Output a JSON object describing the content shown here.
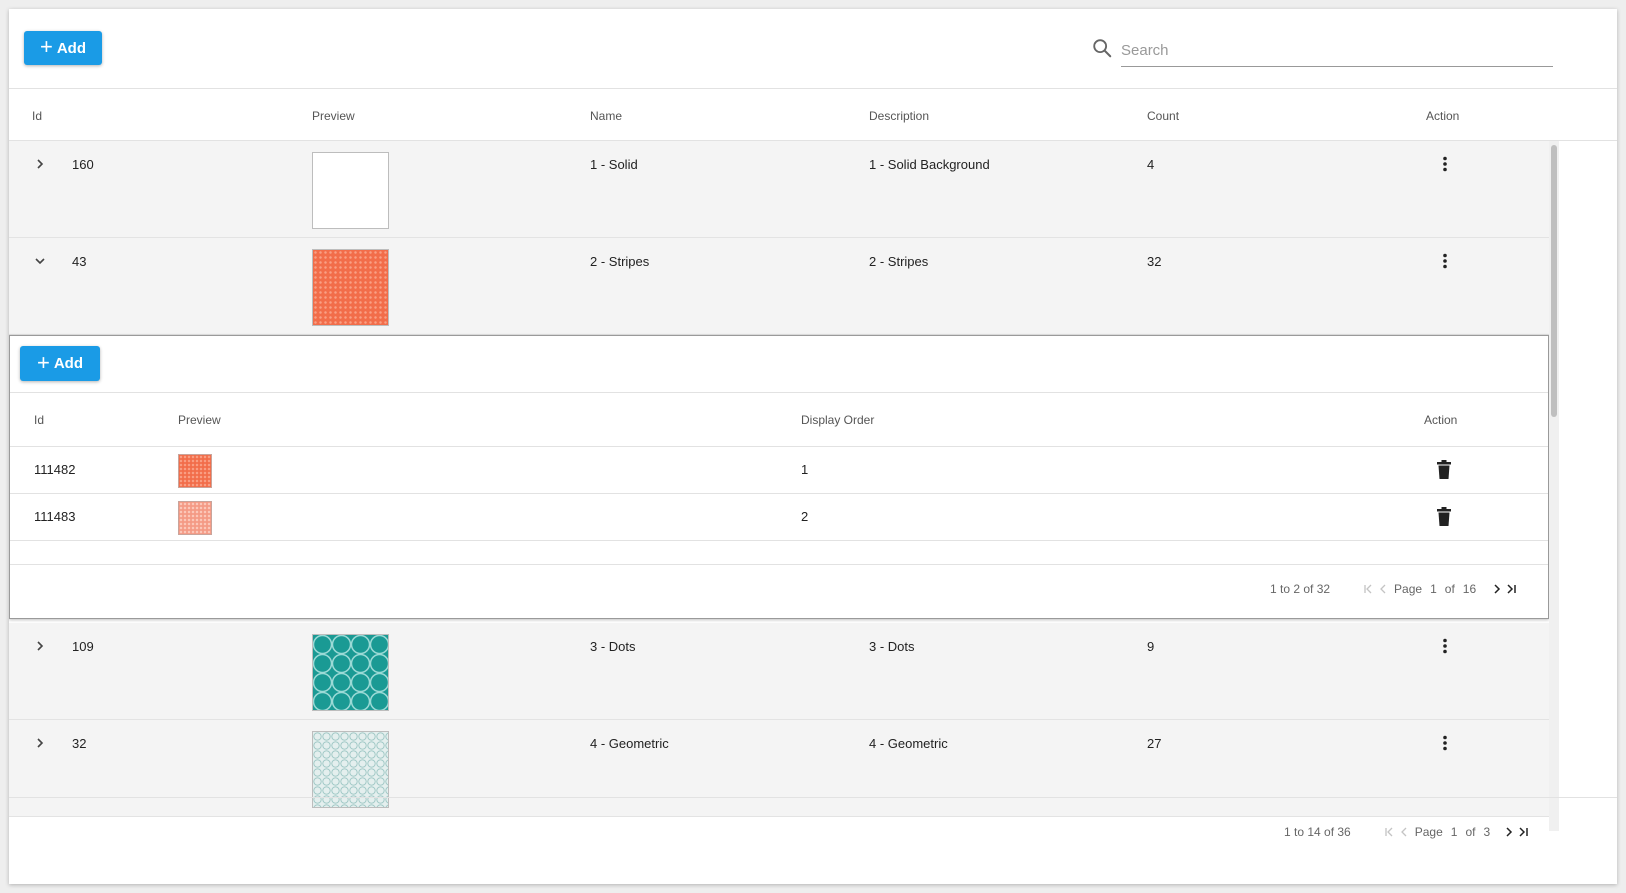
{
  "toolbar": {
    "add_label": "Add",
    "search_placeholder": "Search",
    "search_value": ""
  },
  "columns": {
    "id": "Id",
    "preview": "Preview",
    "name": "Name",
    "description": "Description",
    "count": "Count",
    "action": "Action"
  },
  "rows": [
    {
      "id": "160",
      "name": "1 - Solid",
      "description": "1 - Solid Background",
      "count": "4",
      "expanded": false,
      "preview": "solid-white"
    },
    {
      "id": "43",
      "name": "2 - Stripes",
      "description": "2 - Stripes",
      "count": "32",
      "expanded": true,
      "preview": "orange-pattern"
    },
    {
      "id": "109",
      "name": "3 - Dots",
      "description": "3 - Dots",
      "count": "9",
      "expanded": false,
      "preview": "teal-pattern"
    },
    {
      "id": "32",
      "name": "4 - Geometric",
      "description": "4 - Geometric",
      "count": "27",
      "expanded": false,
      "preview": "light-teal-pattern"
    }
  ],
  "detail": {
    "add_label": "Add",
    "columns": {
      "id": "Id",
      "preview": "Preview",
      "display_order": "Display Order",
      "action": "Action"
    },
    "rows": [
      {
        "id": "111482",
        "display_order": "1",
        "preview": "orange-pattern"
      },
      {
        "id": "111483",
        "display_order": "2",
        "preview": "light-orange-pattern"
      }
    ],
    "pager": {
      "summary": "1 to 2 of 32",
      "page_label": "Page",
      "page": "1",
      "of_label": "of",
      "total_pages": "16"
    }
  },
  "pager": {
    "summary": "1 to 14 of 36",
    "page_label": "Page",
    "page": "1",
    "of_label": "of",
    "total_pages": "3"
  },
  "colors": {
    "accent": "#1a9be6",
    "orange": "#f26d4a",
    "teal": "#1a9a94"
  }
}
